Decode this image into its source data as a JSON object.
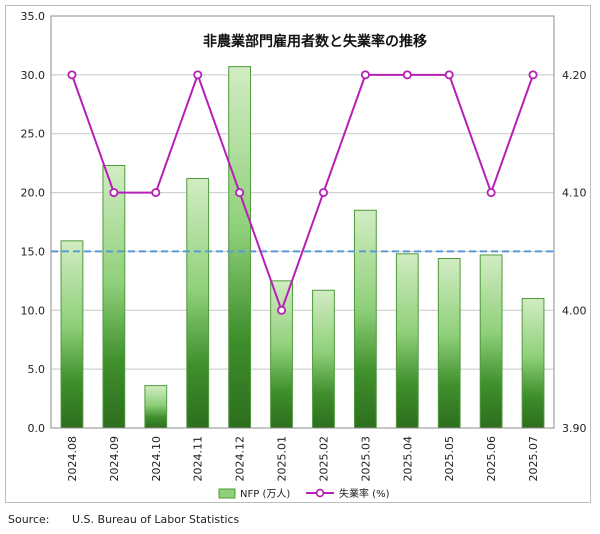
{
  "chart_data": {
    "type": "bar+line",
    "title": "非農業部門雇用者数と失業率の推移",
    "categories": [
      "2024.08",
      "2024.09",
      "2024.10",
      "2024.11",
      "2024.12",
      "2025.01",
      "2025.02",
      "2025.03",
      "2025.04",
      "2025.05",
      "2025.06",
      "2025.07"
    ],
    "series": [
      {
        "name": "NFP (万人)",
        "type": "bar",
        "axis": "left",
        "color": "#5aa845",
        "values": [
          15.9,
          22.3,
          3.6,
          21.2,
          30.7,
          12.5,
          11.7,
          18.5,
          14.8,
          14.4,
          14.7,
          11.0
        ]
      },
      {
        "name": "失業率 (%)",
        "type": "line",
        "axis": "right",
        "color": "#b620b6",
        "values": [
          4.2,
          4.1,
          4.1,
          4.2,
          4.1,
          4.0,
          4.1,
          4.2,
          4.2,
          4.2,
          4.1,
          4.2
        ]
      }
    ],
    "reference_line": {
      "value": 15.0,
      "axis": "left",
      "color": "#5b9bd5",
      "style": "dashed"
    },
    "left_axis": {
      "ylim": [
        0,
        35
      ],
      "ticks": [
        "0.0",
        "5.0",
        "10.0",
        "15.0",
        "20.0",
        "25.0",
        "30.0",
        "35.0"
      ]
    },
    "right_axis": {
      "ylim": [
        3.9,
        4.25
      ],
      "ticks": [
        "3.90",
        "4.00",
        "4.10",
        "4.20"
      ]
    },
    "grid": true,
    "legend_position": "bottom-center"
  },
  "source": {
    "label": "Source:",
    "text": "U.S. Bureau of Labor Statistics"
  }
}
